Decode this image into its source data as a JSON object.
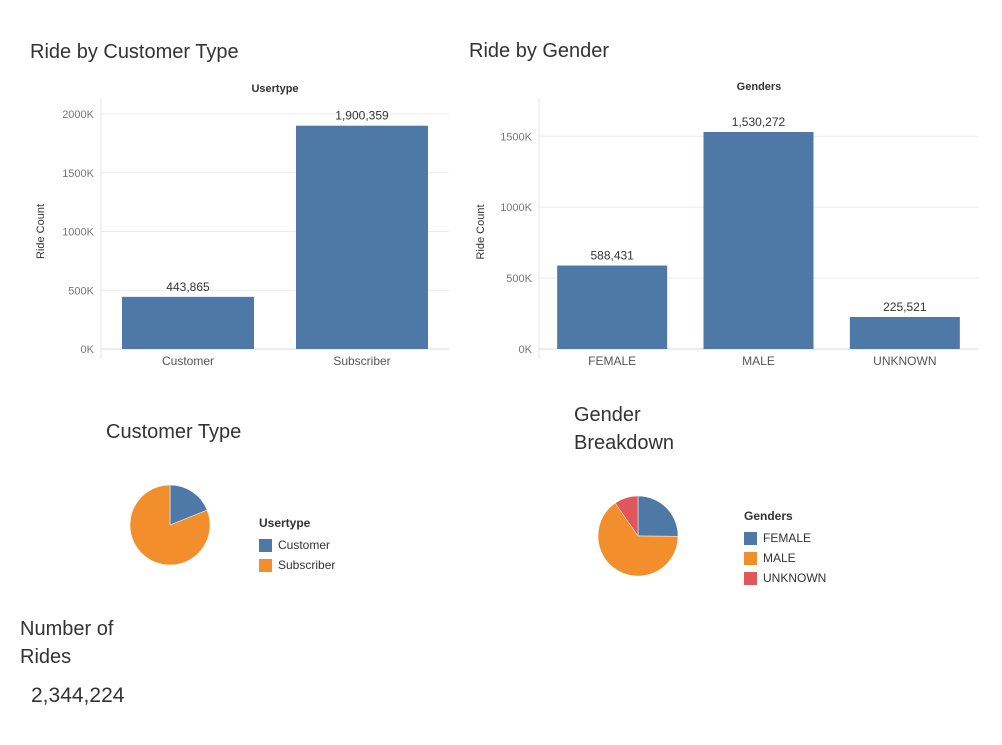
{
  "titles": {
    "ride_by_customer_type": "Ride by Customer Type",
    "ride_by_gender": "Ride by Gender",
    "customer_type": "Customer Type",
    "gender_breakdown_line1": "Gender",
    "gender_breakdown_line2": "Breakdown",
    "number_of_rides_line1": "Number of",
    "number_of_rides_line2": "Rides"
  },
  "kpi": {
    "total_rides": "2,344,224"
  },
  "colors": {
    "blue": "#4e79a7",
    "orange": "#f28e2b",
    "red": "#e15759",
    "grid": "#ececec",
    "axis_text": "#777777"
  },
  "chart_data": [
    {
      "type": "bar",
      "header": "Usertype",
      "ylabel": "Ride Count",
      "categories": [
        "Customer",
        "Subscriber"
      ],
      "values": [
        443865,
        1900359
      ],
      "value_labels": [
        "443,865",
        "1,900,359"
      ],
      "ylim": [
        0,
        2000000
      ],
      "yticks": [
        0,
        500000,
        1000000,
        1500000,
        2000000
      ],
      "ytick_labels": [
        "0K",
        "500K",
        "1000K",
        "1500K",
        "2000K"
      ]
    },
    {
      "type": "bar",
      "header": "Genders",
      "ylabel": "Ride Count",
      "categories": [
        "FEMALE",
        "MALE",
        "UNKNOWN"
      ],
      "values": [
        588431,
        1530272,
        225521
      ],
      "value_labels": [
        "588,431",
        "1,530,272",
        "225,521"
      ],
      "ylim": [
        0,
        1650000
      ],
      "yticks": [
        0,
        500000,
        1000000,
        1500000
      ],
      "ytick_labels": [
        "0K",
        "500K",
        "1000K",
        "1500K"
      ]
    },
    {
      "type": "pie",
      "legend_title": "Usertype",
      "categories": [
        "Customer",
        "Subscriber"
      ],
      "values": [
        443865,
        1900359
      ]
    },
    {
      "type": "pie",
      "legend_title": "Genders",
      "categories": [
        "FEMALE",
        "MALE",
        "UNKNOWN"
      ],
      "values": [
        588431,
        1530272,
        225521
      ]
    }
  ]
}
